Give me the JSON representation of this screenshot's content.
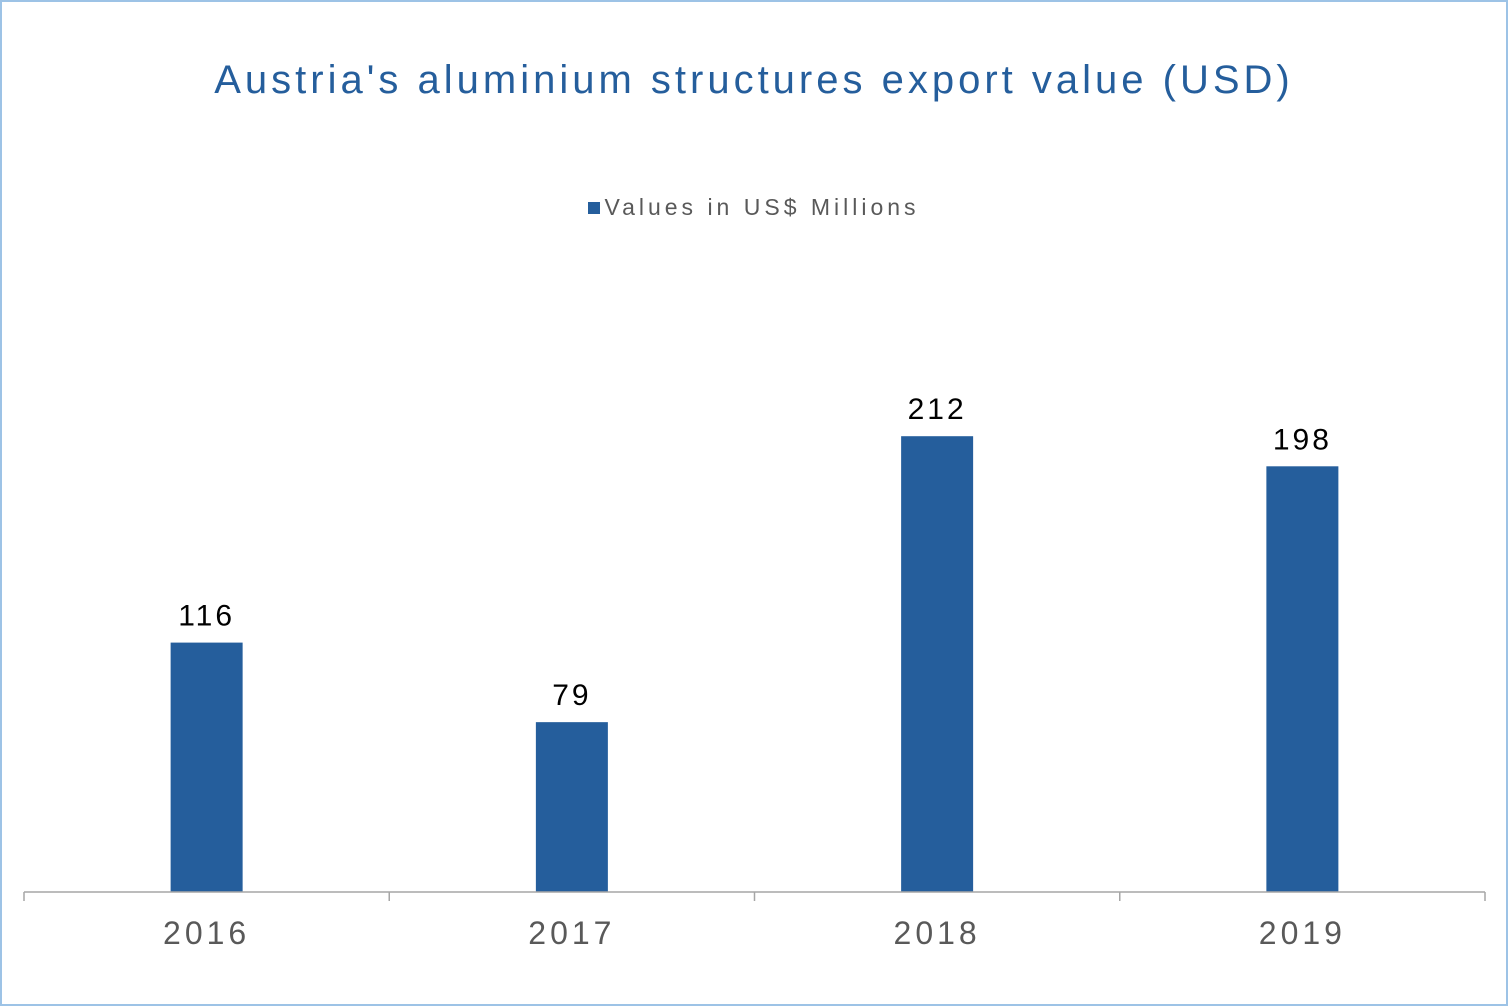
{
  "chart_data": {
    "type": "bar",
    "title": "Austria's aluminium structures export value (USD)",
    "categories": [
      "2016",
      "2017",
      "2018",
      "2019"
    ],
    "series": [
      {
        "name": "Values in US$ Millions",
        "values": [
          116,
          79,
          212,
          198
        ],
        "color": "#255e9c"
      }
    ],
    "xlabel": "",
    "ylabel": "",
    "ylim": [
      0,
      240
    ],
    "grid": false,
    "legend_position": "top-center",
    "data_labels": true
  }
}
